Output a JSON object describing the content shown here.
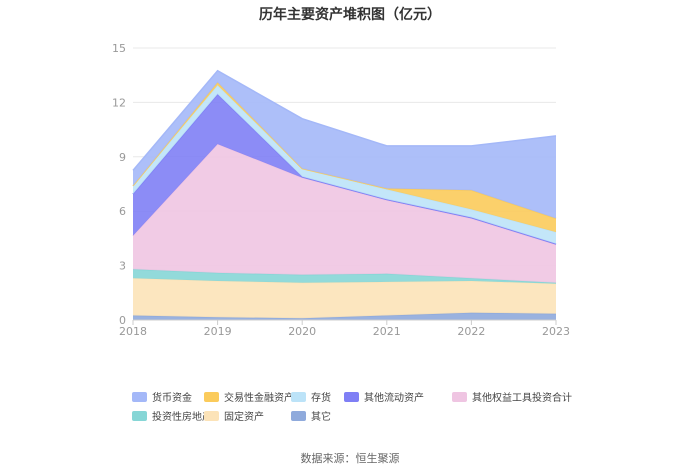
{
  "chart_data": {
    "type": "area",
    "title": "历年主要资产堆积图（亿元）",
    "x": [
      "2018",
      "2019",
      "2020",
      "2021",
      "2022",
      "2023"
    ],
    "ylim": [
      0,
      15
    ],
    "yticks": [
      0,
      3,
      6,
      9,
      12,
      15
    ],
    "grid": true,
    "stacked": true,
    "legend_position": "bottom",
    "series": [
      {
        "name": "其它",
        "color": "#8FAADC",
        "values": [
          0.25,
          0.15,
          0.1,
          0.25,
          0.4,
          0.35
        ]
      },
      {
        "name": "固定资产",
        "color": "#FCE3B8",
        "values": [
          2.05,
          2.0,
          1.95,
          1.85,
          1.75,
          1.65
        ]
      },
      {
        "name": "投资性房地产",
        "color": "#86D6D6",
        "values": [
          0.5,
          0.45,
          0.45,
          0.45,
          0.15,
          0.05
        ]
      },
      {
        "name": "其他权益工具投资合计",
        "color": "#EFC5E2",
        "values": [
          1.85,
          7.1,
          5.35,
          4.05,
          3.3,
          2.1
        ]
      },
      {
        "name": "其他流动资产",
        "color": "#7F7FF5",
        "values": [
          2.3,
          2.75,
          0.05,
          0.05,
          0.05,
          0.05
        ]
      },
      {
        "name": "存货",
        "color": "#BCE3F8",
        "values": [
          0.45,
          0.5,
          0.45,
          0.55,
          0.45,
          0.65
        ]
      },
      {
        "name": "交易性金融资产",
        "color": "#FBCB5B",
        "values": [
          0.0,
          0.15,
          0.0,
          0.05,
          1.05,
          0.75
        ]
      },
      {
        "name": "货币资金",
        "color": "#A4B8F8",
        "values": [
          0.85,
          0.65,
          2.75,
          2.35,
          2.45,
          4.55
        ]
      }
    ],
    "legend_order": [
      "货币资金",
      "交易性金融资产",
      "存货",
      "其他流动资产",
      "其他权益工具投资合计",
      "投资性房地产",
      "固定资产",
      "其它"
    ],
    "source": "数据来源：恒生聚源"
  }
}
